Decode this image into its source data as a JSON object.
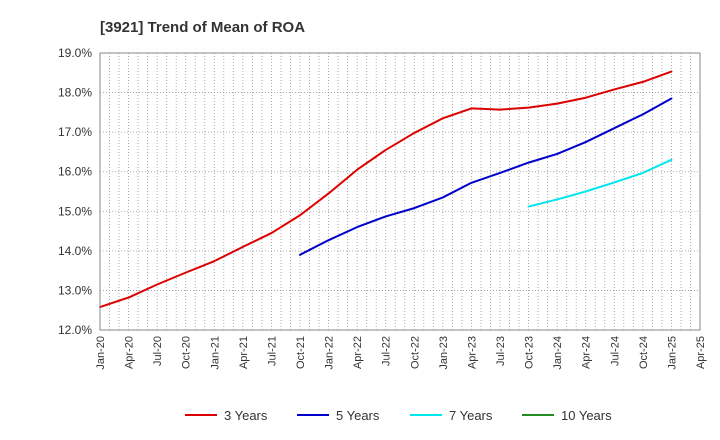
{
  "chart_data": {
    "type": "line",
    "title": "[3921]  Trend of Mean of ROA",
    "xlabel": "",
    "ylabel": "",
    "ylim": [
      12.0,
      19.0
    ],
    "grid": true,
    "legend_position": "bottom",
    "y_ticks": [
      "12.0%",
      "13.0%",
      "14.0%",
      "15.0%",
      "16.0%",
      "17.0%",
      "18.0%",
      "19.0%"
    ],
    "x_ticks": [
      "Jan-20",
      "Apr-20",
      "Jul-20",
      "Oct-20",
      "Jan-21",
      "Apr-21",
      "Jul-21",
      "Oct-21",
      "Jan-22",
      "Apr-22",
      "Jul-22",
      "Oct-22",
      "Jan-23",
      "Apr-23",
      "Jul-23",
      "Oct-23",
      "Jan-24",
      "Apr-24",
      "Jul-24",
      "Oct-24",
      "Jan-25",
      "Apr-25"
    ],
    "series": [
      {
        "name": "3 Years",
        "color": "#dd0000",
        "x": [
          "Jan-20",
          "Apr-20",
          "Jul-20",
          "Oct-20",
          "Jan-21",
          "Apr-21",
          "Jul-21",
          "Oct-21",
          "Jan-22",
          "Apr-22",
          "Jul-22",
          "Oct-22",
          "Jan-23",
          "Apr-23",
          "Jul-23",
          "Oct-23",
          "Jan-24",
          "Apr-24",
          "Jul-24",
          "Oct-24",
          "Jan-25"
        ],
        "values": [
          12.58,
          12.82,
          13.15,
          13.45,
          13.74,
          14.1,
          14.45,
          14.9,
          15.45,
          16.05,
          16.55,
          16.98,
          17.35,
          17.6,
          17.57,
          17.62,
          17.72,
          17.87,
          18.08,
          18.27,
          18.53
        ]
      },
      {
        "name": "5 Years",
        "color": "#0000cc",
        "x": [
          "Oct-21",
          "Jan-22",
          "Apr-22",
          "Jul-22",
          "Oct-22",
          "Jan-23",
          "Apr-23",
          "Jul-23",
          "Oct-23",
          "Jan-24",
          "Apr-24",
          "Jul-24",
          "Oct-24",
          "Jan-25"
        ],
        "values": [
          13.9,
          14.27,
          14.6,
          14.87,
          15.08,
          15.35,
          15.72,
          15.97,
          16.23,
          16.45,
          16.75,
          17.1,
          17.45,
          17.85
        ]
      },
      {
        "name": "7 Years",
        "color": "#00e5ee",
        "x": [
          "Oct-23",
          "Jan-24",
          "Apr-24",
          "Jul-24",
          "Oct-24",
          "Jan-25"
        ],
        "values": [
          15.12,
          15.3,
          15.5,
          15.73,
          15.97,
          16.3
        ]
      },
      {
        "name": "10 Years",
        "color": "#228b22",
        "x": [],
        "values": []
      }
    ]
  }
}
